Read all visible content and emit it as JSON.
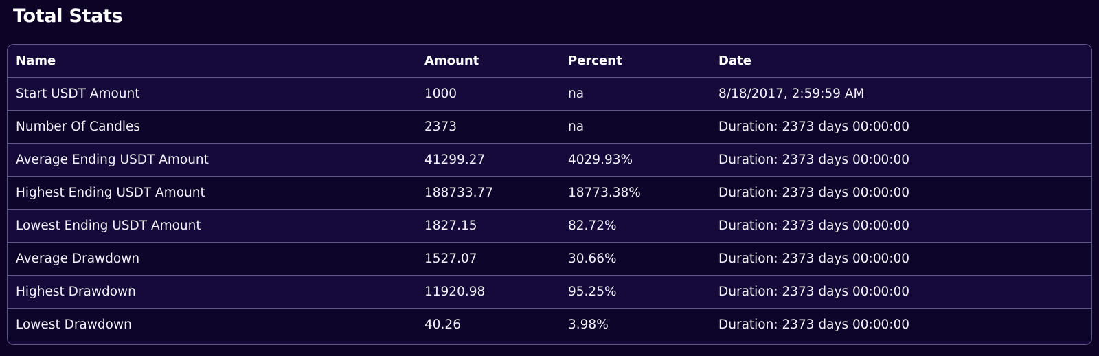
{
  "page": {
    "title": "Total Stats"
  },
  "table": {
    "columns": [
      "Name",
      "Amount",
      "Percent",
      "Date"
    ],
    "rows": [
      {
        "name": "Start USDT Amount",
        "amount": "1000",
        "percent": "na",
        "date": "8/18/2017, 2:59:59 AM"
      },
      {
        "name": "Number Of Candles",
        "amount": "2373",
        "percent": "na",
        "date": "Duration: 2373 days 00:00:00"
      },
      {
        "name": "Average Ending USDT Amount",
        "amount": "41299.27",
        "percent": "4029.93%",
        "date": "Duration: 2373 days 00:00:00"
      },
      {
        "name": "Highest Ending USDT Amount",
        "amount": "188733.77",
        "percent": "18773.38%",
        "date": "Duration: 2373 days 00:00:00"
      },
      {
        "name": "Lowest Ending USDT Amount",
        "amount": "1827.15",
        "percent": "82.72%",
        "date": "Duration: 2373 days 00:00:00"
      },
      {
        "name": "Average Drawdown",
        "amount": "1527.07",
        "percent": "30.66%",
        "date": "Duration: 2373 days 00:00:00"
      },
      {
        "name": "Highest Drawdown",
        "amount": "11920.98",
        "percent": "95.25%",
        "date": "Duration: 2373 days 00:00:00"
      },
      {
        "name": "Lowest Drawdown",
        "amount": "40.26",
        "percent": "3.98%",
        "date": "Duration: 2373 days 00:00:00"
      }
    ]
  },
  "colors": {
    "background": "#0d0327",
    "row_odd": "#150a3a",
    "row_even": "#0e052b",
    "border": "#5d5488",
    "text": "#ffffff"
  }
}
